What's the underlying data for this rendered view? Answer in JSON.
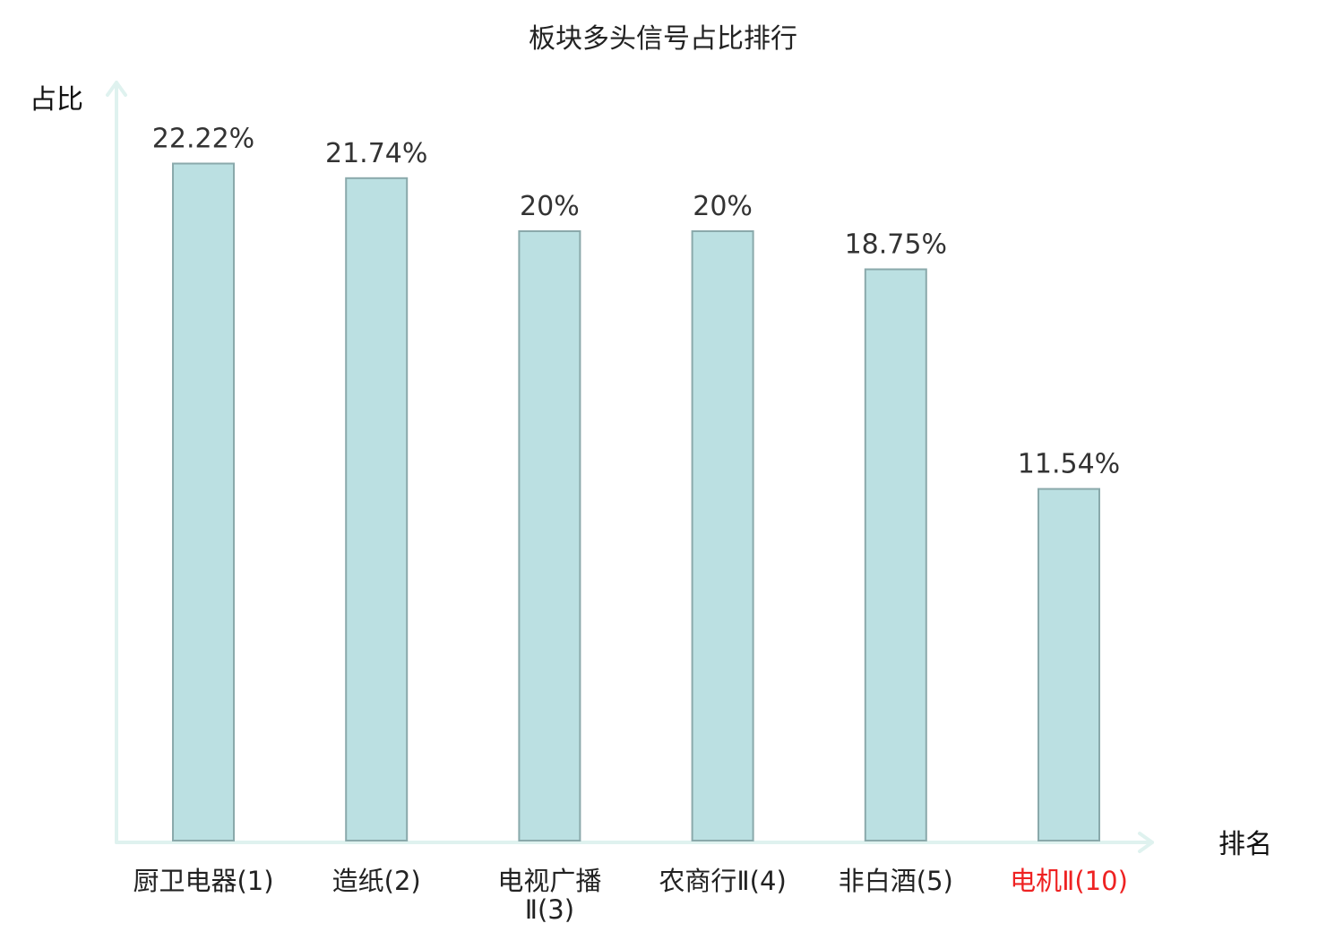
{
  "chart_data": {
    "type": "bar",
    "title": "板块多头信号占比排行",
    "ylabel": "占比",
    "xlabel": "排名",
    "categories": [
      [
        "厨卫电器(1)"
      ],
      [
        "造纸(2)"
      ],
      [
        "电视广播",
        "Ⅱ(3)"
      ],
      [
        "农商行Ⅱ(4)"
      ],
      [
        "非白酒(5)"
      ],
      [
        "电机Ⅱ(10)"
      ]
    ],
    "values": [
      22.22,
      21.74,
      20,
      20,
      18.75,
      11.54
    ],
    "value_labels": [
      "22.22%",
      "21.74%",
      "20%",
      "20%",
      "18.75%",
      "11.54%"
    ],
    "highlight_index": 5,
    "ylim": [
      0,
      25
    ],
    "grid": false,
    "legend": "none"
  },
  "colors": {
    "bar_fill": "#bbe0e2",
    "bar_stroke": "#8aa9ab",
    "axis": "#dff2ef",
    "label_default": "#222222",
    "label_highlight": "#ee2222"
  }
}
